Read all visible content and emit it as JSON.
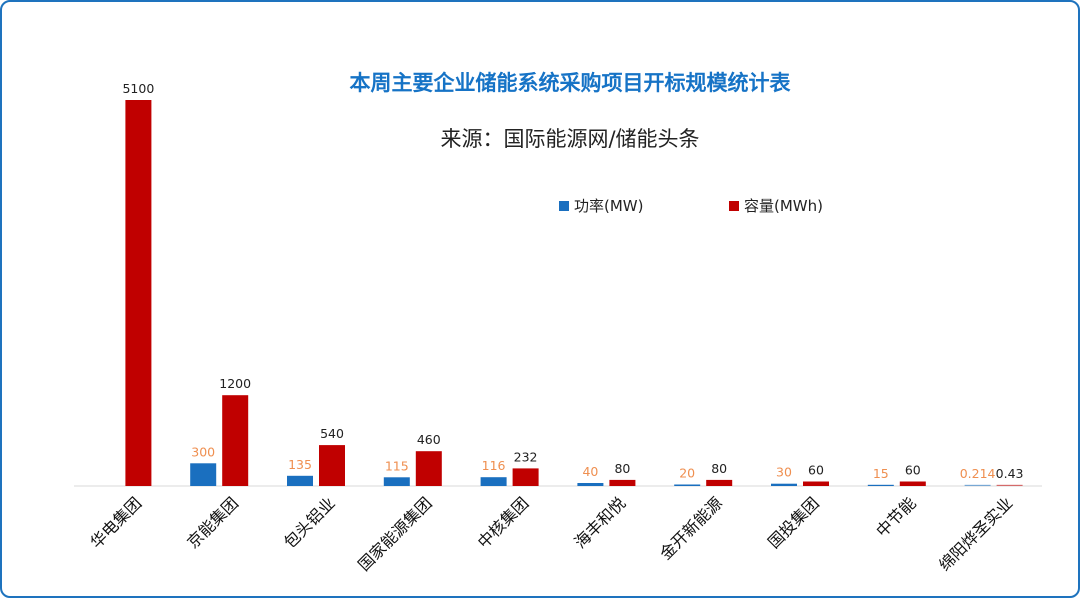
{
  "chart_data": {
    "type": "bar",
    "title": "本周主要企业储能系统采购项目开标规模统计表",
    "subtitle": "来源：国际能源网/储能头条",
    "categories": [
      "华电集团",
      "京能集团",
      "包头铝业",
      "国家能源集团",
      "中核集团",
      "海丰和悦",
      "金开新能源",
      "国投集团",
      "中节能",
      "绵阳烨圣实业"
    ],
    "series": [
      {
        "name": "功率(MW)",
        "color": "#1a6fbf",
        "label_color": "#ef8f50",
        "values": [
          null,
          300,
          135,
          115,
          116,
          40,
          20,
          30,
          15,
          0.214
        ],
        "labels": [
          "",
          "300",
          "135",
          "115",
          "116",
          "40",
          "20",
          "30",
          "15",
          "0.214"
        ]
      },
      {
        "name": "容量(MWh)",
        "color": "#c00000",
        "label_color": "#222222",
        "values": [
          5100,
          1200,
          540,
          460,
          232,
          80,
          80,
          60,
          60,
          0.43
        ],
        "labels": [
          "5100",
          "1200",
          "540",
          "460",
          "232",
          "80",
          "80",
          "60",
          "60",
          "0.43"
        ]
      }
    ],
    "ylim": [
      0,
      5100
    ],
    "grid": false,
    "legend": "top-center"
  }
}
